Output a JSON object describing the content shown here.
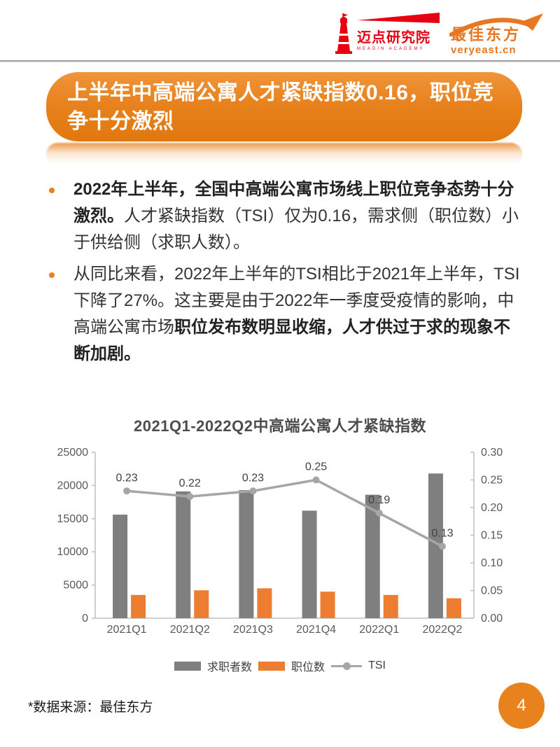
{
  "header": {
    "meadin": {
      "name": "迈点研究院",
      "sub": "MEADIN ACADEMY",
      "color": "#e60113"
    },
    "veryeast": {
      "name": "最佳东方",
      "domain": "veryeast.cn",
      "color": "#e87722"
    }
  },
  "banner": {
    "title": "上半年中高端公寓人才紧缺指数0.16，职位竞争十分激烈",
    "bg": "#e8821d",
    "text_color": "#ffffff"
  },
  "bullets": [
    {
      "segments": [
        {
          "text": "2022年上半年，全国中高端公寓市场线上职位竞争态势十分激烈。",
          "bold": true
        },
        {
          "text": "人才紧缺指数（TSI）仅为0.16，需求侧（职位数）小于供给侧（求职人数）。",
          "bold": false
        }
      ]
    },
    {
      "segments": [
        {
          "text": "从同比来看，2022年上半年的TSI相比于2021年上半年，TSI下降了27%。这主要是由于2022年一季度受疫情的影响，中高端公寓市场",
          "bold": false
        },
        {
          "text": "职位发布数明显收缩，人才供过于求的现象不断加剧。",
          "bold": true
        }
      ]
    }
  ],
  "chart_data": {
    "type": "bar",
    "subtype": "grouped bars with secondary-axis line",
    "title": "2021Q1-2022Q2中高端公寓人才紧缺指数",
    "categories": [
      "2021Q1",
      "2021Q2",
      "2021Q3",
      "2021Q4",
      "2022Q1",
      "2022Q2"
    ],
    "series": [
      {
        "key": "jobseekers",
        "name": "求职者数",
        "type": "bar",
        "axis": "left",
        "color": "#7f7f7f",
        "values": [
          15600,
          19100,
          19300,
          16200,
          18600,
          21800
        ]
      },
      {
        "key": "positions",
        "name": "职位数",
        "type": "bar",
        "axis": "left",
        "color": "#ed7d31",
        "values": [
          3500,
          4200,
          4500,
          4000,
          3500,
          3000
        ]
      },
      {
        "key": "tsi",
        "name": "TSI",
        "type": "line",
        "axis": "right",
        "color": "#a6a6a6",
        "values": [
          0.23,
          0.22,
          0.23,
          0.25,
          0.19,
          0.13
        ],
        "labels": [
          "0.23",
          "0.22",
          "0.23",
          "0.25",
          "0.19",
          "0.13"
        ]
      }
    ],
    "left_axis": {
      "min": 0,
      "max": 25000,
      "step": 5000,
      "ticks": [
        "0",
        "5000",
        "10000",
        "15000",
        "20000",
        "25000"
      ]
    },
    "right_axis": {
      "min": 0,
      "max": 0.3,
      "step": 0.05,
      "ticks": [
        "0.00",
        "0.05",
        "0.10",
        "0.15",
        "0.20",
        "0.25",
        "0.30"
      ]
    },
    "legend_position": "bottom",
    "grid": false,
    "axis_color": "#bfbfbf",
    "label_color": "#595959",
    "data_label_color": "#404040"
  },
  "footer": {
    "source": "*数据来源：最佳东方",
    "page_number": "4"
  }
}
